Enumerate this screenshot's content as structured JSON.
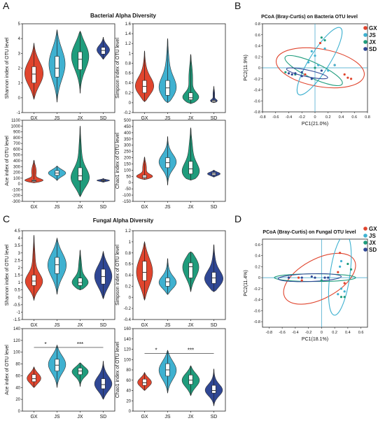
{
  "colors": {
    "GX": "#e0452e",
    "JS": "#3fb1d0",
    "JX": "#1f9c7c",
    "SD": "#2f4795"
  },
  "groups": [
    "GX",
    "JS",
    "JX",
    "SD"
  ],
  "panel_labels": [
    "A",
    "B",
    "C",
    "D"
  ],
  "section_titles": [
    "Bacterial Alpha Diversity",
    "Fungal Alpha Diversity"
  ],
  "chart_data": [
    {
      "id": "bac-shannon",
      "type": "violin",
      "categories": [
        "GX",
        "JS",
        "JX",
        "SD"
      ],
      "ylabel": "Shannon index of OTU level",
      "ylim": [
        -1,
        5
      ],
      "yticks": [
        -1,
        0,
        1,
        2,
        3,
        4,
        5
      ],
      "series": [
        {
          "name": "GX",
          "min": -0.1,
          "q1": 1.0,
          "median": 1.6,
          "q3": 2.1,
          "max": 3.7,
          "mode": 1.6,
          "width": 0.8
        },
        {
          "name": "JS",
          "min": -0.3,
          "q1": 1.4,
          "median": 2.0,
          "q3": 2.8,
          "max": 4.6,
          "mode": 2.3,
          "width": 0.7
        },
        {
          "name": "JX",
          "min": 0.3,
          "q1": 1.9,
          "median": 2.6,
          "q3": 3.1,
          "max": 4.5,
          "mode": 2.9,
          "width": 0.75
        },
        {
          "name": "SD",
          "min": 2.6,
          "q1": 2.95,
          "median": 3.2,
          "q3": 3.4,
          "max": 4.1,
          "mode": 3.2,
          "width": 0.55
        }
      ],
      "annotations": []
    },
    {
      "id": "bac-simpson",
      "type": "violin",
      "categories": [
        "GX",
        "JS",
        "JX",
        "SD"
      ],
      "ylabel": "Simpson index of OTU level",
      "ylim": [
        -0.2,
        1.6
      ],
      "yticks": [
        -0.2,
        0.0,
        0.2,
        0.4,
        0.6,
        0.8,
        1.0,
        1.2,
        1.4,
        1.6
      ],
      "series": [
        {
          "name": "GX",
          "min": 0.02,
          "q1": 0.2,
          "median": 0.33,
          "q3": 0.45,
          "max": 1.05,
          "mode": 0.3,
          "width": 0.8
        },
        {
          "name": "JS",
          "min": 0.0,
          "q1": 0.15,
          "median": 0.3,
          "q3": 0.45,
          "max": 1.3,
          "mode": 0.25,
          "width": 0.75
        },
        {
          "name": "JX",
          "min": -0.02,
          "q1": 0.06,
          "median": 0.1,
          "q3": 0.2,
          "max": 0.98,
          "mode": 0.08,
          "width": 0.7
        },
        {
          "name": "SD",
          "min": 0.0,
          "q1": 0.01,
          "median": 0.03,
          "q3": 0.05,
          "max": 0.33,
          "mode": 0.03,
          "width": 0.3
        }
      ],
      "annotations": []
    },
    {
      "id": "bac-ace",
      "type": "violin",
      "categories": [
        "GX",
        "JS",
        "JX",
        "SD"
      ],
      "ylabel": "Ace index of OTU level",
      "ylim": [
        -300,
        1100
      ],
      "yticks": [
        -300,
        -200,
        -100,
        0,
        100,
        200,
        300,
        400,
        500,
        600,
        700,
        800,
        900,
        1000,
        1100
      ],
      "series": [
        {
          "name": "GX",
          "min": 20,
          "q1": 40,
          "median": 55,
          "q3": 70,
          "max": 410,
          "mode": 55,
          "width": 0.8
        },
        {
          "name": "JS",
          "min": 60,
          "q1": 150,
          "median": 190,
          "q3": 230,
          "max": 310,
          "mode": 190,
          "width": 0.75
        },
        {
          "name": "JX",
          "min": -220,
          "q1": 60,
          "median": 140,
          "q3": 280,
          "max": 1000,
          "mode": 80,
          "width": 0.8
        },
        {
          "name": "SD",
          "min": 30,
          "q1": 50,
          "median": 60,
          "q3": 70,
          "max": 95,
          "mode": 60,
          "width": 0.55
        }
      ],
      "annotations": []
    },
    {
      "id": "bac-chao1",
      "type": "violin",
      "categories": [
        "GX",
        "JS",
        "JX",
        "SD"
      ],
      "ylabel": "Chao1 index of OTU level",
      "ylim": [
        -150,
        500
      ],
      "yticks": [
        -150,
        -100,
        -50,
        0,
        50,
        100,
        150,
        200,
        250,
        300,
        350,
        400,
        450,
        500
      ],
      "series": [
        {
          "name": "GX",
          "min": 25,
          "q1": 35,
          "median": 45,
          "q3": 60,
          "max": 205,
          "mode": 45,
          "width": 0.7
        },
        {
          "name": "JS",
          "min": -20,
          "q1": 120,
          "median": 160,
          "q3": 200,
          "max": 370,
          "mode": 165,
          "width": 0.75
        },
        {
          "name": "JX",
          "min": 20,
          "q1": 70,
          "median": 110,
          "q3": 170,
          "max": 440,
          "mode": 60,
          "width": 0.75
        },
        {
          "name": "SD",
          "min": 45,
          "q1": 60,
          "median": 70,
          "q3": 80,
          "max": 100,
          "mode": 70,
          "width": 0.55
        }
      ],
      "annotations": []
    },
    {
      "id": "fun-shannon",
      "type": "violin",
      "categories": [
        "GX",
        "JS",
        "JX",
        "SD"
      ],
      "ylabel": "Shannon index of OTU level",
      "ylim": [
        -1.5,
        4.5
      ],
      "yticks": [
        -1.5,
        -1,
        -0.5,
        0,
        0.5,
        1,
        1.5,
        2,
        2.5,
        3,
        3.5,
        4,
        4.5
      ],
      "series": [
        {
          "name": "GX",
          "min": -0.2,
          "q1": 0.8,
          "median": 1.1,
          "q3": 1.5,
          "max": 4.2,
          "mode": 1.0,
          "width": 0.75
        },
        {
          "name": "JS",
          "min": 0.2,
          "q1": 1.6,
          "median": 2.2,
          "q3": 2.7,
          "max": 4.0,
          "mode": 2.2,
          "width": 0.8
        },
        {
          "name": "JX",
          "min": 0.5,
          "q1": 0.8,
          "median": 1.0,
          "q3": 1.3,
          "max": 3.2,
          "mode": 0.9,
          "width": 0.7
        },
        {
          "name": "SD",
          "min": -0.1,
          "q1": 0.9,
          "median": 1.4,
          "q3": 1.9,
          "max": 3.1,
          "mode": 1.4,
          "width": 0.75
        }
      ],
      "annotations": []
    },
    {
      "id": "fun-simpson",
      "type": "violin",
      "categories": [
        "GX",
        "JS",
        "JX",
        "SD"
      ],
      "ylabel": "Simpson index of OTU level",
      "ylim": [
        -0.4,
        1.2
      ],
      "yticks": [
        -0.4,
        -0.2,
        0.0,
        0.2,
        0.4,
        0.6,
        0.8,
        1.0,
        1.2
      ],
      "series": [
        {
          "name": "GX",
          "min": -0.05,
          "q1": 0.3,
          "median": 0.45,
          "q3": 0.65,
          "max": 1.0,
          "mode": 0.45,
          "width": 0.7
        },
        {
          "name": "JS",
          "min": 0.05,
          "q1": 0.2,
          "median": 0.28,
          "q3": 0.35,
          "max": 0.7,
          "mode": 0.25,
          "width": 0.75
        },
        {
          "name": "JX",
          "min": 0.1,
          "q1": 0.35,
          "median": 0.55,
          "q3": 0.62,
          "max": 0.82,
          "mode": 0.58,
          "width": 0.7
        },
        {
          "name": "SD",
          "min": 0.1,
          "q1": 0.25,
          "median": 0.35,
          "q3": 0.45,
          "max": 0.95,
          "mode": 0.3,
          "width": 0.8
        }
      ],
      "annotations": []
    },
    {
      "id": "fun-ace",
      "type": "violin",
      "categories": [
        "GX",
        "JS",
        "JX",
        "SD"
      ],
      "ylabel": "Ace index of OTU level",
      "ylim": [
        0,
        140
      ],
      "yticks": [
        0,
        20,
        40,
        60,
        80,
        100,
        120,
        140
      ],
      "series": [
        {
          "name": "GX",
          "min": 40,
          "q1": 50,
          "median": 55,
          "q3": 62,
          "max": 75,
          "mode": 55,
          "width": 0.6
        },
        {
          "name": "JS",
          "min": 40,
          "q1": 68,
          "median": 78,
          "q3": 88,
          "max": 112,
          "mode": 80,
          "width": 0.75
        },
        {
          "name": "JX",
          "min": 42,
          "q1": 62,
          "median": 68,
          "q3": 73,
          "max": 82,
          "mode": 68,
          "width": 0.7
        },
        {
          "name": "SD",
          "min": 20,
          "q1": 38,
          "median": 45,
          "q3": 55,
          "max": 85,
          "mode": 45,
          "width": 0.75
        }
      ],
      "annotations": [
        {
          "text": "*",
          "from": 0,
          "to": 1,
          "y": 108
        },
        {
          "text": "***",
          "from": 1,
          "to": 3,
          "y": 108
        }
      ]
    },
    {
      "id": "fun-chao1",
      "type": "violin",
      "categories": [
        "GX",
        "JS",
        "JX",
        "SD"
      ],
      "ylabel": "Chao1 index of OTU level",
      "ylim": [
        0,
        160
      ],
      "yticks": [
        0,
        20,
        40,
        60,
        80,
        100,
        120,
        140,
        160
      ],
      "series": [
        {
          "name": "GX",
          "min": 40,
          "q1": 50,
          "median": 55,
          "q3": 62,
          "max": 75,
          "mode": 55,
          "width": 0.6
        },
        {
          "name": "JS",
          "min": 35,
          "q1": 68,
          "median": 80,
          "q3": 92,
          "max": 118,
          "mode": 80,
          "width": 0.75
        },
        {
          "name": "JX",
          "min": 30,
          "q1": 52,
          "median": 60,
          "q3": 70,
          "max": 88,
          "mode": 60,
          "width": 0.75
        },
        {
          "name": "SD",
          "min": 10,
          "q1": 35,
          "median": 40,
          "q3": 50,
          "max": 82,
          "mode": 40,
          "width": 0.75
        }
      ],
      "annotations": [
        {
          "text": "*",
          "from": 0,
          "to": 1,
          "y": 112
        },
        {
          "text": "***",
          "from": 1,
          "to": 3,
          "y": 112
        }
      ]
    },
    {
      "id": "bac-pcoa",
      "type": "scatter",
      "title": "PCoA (Bray-Curtis) on Bacteria OTU level",
      "xlabel": "PC1(21.0%)",
      "ylabel": "PC2(11.9%)",
      "xlim": [
        -0.8,
        0.8
      ],
      "ylim": [
        -0.8,
        0.8
      ],
      "xticks": [
        -0.8,
        -0.6,
        -0.4,
        -0.2,
        0.0,
        0.2,
        0.4,
        0.6,
        0.8
      ],
      "yticks": [
        -0.8,
        -0.6,
        -0.4,
        -0.2,
        0.0,
        0.2,
        0.4,
        0.6,
        0.8
      ],
      "legend": "top-right",
      "ellipses": [
        {
          "group": "GX",
          "cx": 0.08,
          "cy": 0.0,
          "rx": 0.68,
          "ry": 0.34,
          "angle": -10
        },
        {
          "group": "JS",
          "cx": 0.07,
          "cy": 0.12,
          "rx": 0.6,
          "ry": 0.18,
          "angle": 58
        },
        {
          "group": "JX",
          "cx": -0.02,
          "cy": -0.05,
          "rx": 0.48,
          "ry": 0.14,
          "angle": -25
        },
        {
          "group": "SD",
          "cx": -0.12,
          "cy": -0.1,
          "rx": 0.32,
          "ry": 0.06,
          "angle": -12
        }
      ],
      "series": [
        {
          "name": "GX",
          "points": [
            [
              0.08,
              0.45
            ],
            [
              0.45,
              -0.12
            ],
            [
              0.5,
              -0.18
            ],
            [
              0.55,
              -0.2
            ],
            [
              -0.15,
              -0.12
            ],
            [
              0.3,
              0.05
            ]
          ]
        },
        {
          "name": "JS",
          "points": [
            [
              0.0,
              0.22
            ],
            [
              -0.05,
              0.3
            ],
            [
              0.15,
              0.35
            ],
            [
              0.3,
              0.05
            ],
            [
              0.2,
              -0.05
            ],
            [
              -0.1,
              0.1
            ],
            [
              0.05,
              0.05
            ]
          ]
        },
        {
          "name": "JX",
          "points": [
            [
              0.1,
              0.55
            ],
            [
              0.15,
              0.5
            ],
            [
              -0.3,
              -0.12
            ],
            [
              -0.45,
              -0.08
            ],
            [
              0.0,
              0.0
            ]
          ]
        },
        {
          "name": "SD",
          "points": [
            [
              -0.35,
              -0.12
            ],
            [
              -0.4,
              -0.1
            ],
            [
              -0.3,
              -0.1
            ],
            [
              -0.2,
              -0.15
            ],
            [
              -0.05,
              -0.2
            ],
            [
              0.1,
              -0.05
            ],
            [
              -0.2,
              -0.08
            ]
          ]
        }
      ]
    },
    {
      "id": "fun-pcoa",
      "type": "scatter",
      "title": "PCoA (Bray-Curtis) on Fungal OTU level",
      "xlabel": "PC1(18.1%)",
      "ylabel": "PC2(11.4%)",
      "xlim": [
        -0.9,
        0.7
      ],
      "ylim": [
        -0.9,
        0.7
      ],
      "xticks": [
        -0.8,
        -0.6,
        -0.4,
        -0.2,
        0.0,
        0.2,
        0.4,
        0.6
      ],
      "yticks": [
        -0.8,
        -0.6,
        -0.4,
        -0.2,
        0.0,
        0.2,
        0.4,
        0.6
      ],
      "legend": "top-right",
      "ellipses": [
        {
          "group": "GX",
          "cx": -0.03,
          "cy": -0.02,
          "rx": 0.6,
          "ry": 0.36,
          "angle": 28
        },
        {
          "group": "JS",
          "cx": 0.28,
          "cy": 0.05,
          "rx": 0.62,
          "ry": 0.18,
          "angle": 82
        },
        {
          "group": "JX",
          "cx": -0.1,
          "cy": 0.0,
          "rx": 0.62,
          "ry": 0.07,
          "angle": 0
        },
        {
          "group": "SD",
          "cx": -0.18,
          "cy": 0.0,
          "rx": 0.48,
          "ry": 0.07,
          "angle": 2
        }
      ],
      "series": [
        {
          "name": "GX",
          "points": [
            [
              0.28,
              0.45
            ],
            [
              0.25,
              0.1
            ],
            [
              -0.3,
              -0.05
            ],
            [
              -0.35,
              0.0
            ],
            [
              0.35,
              -0.1
            ]
          ]
        },
        {
          "name": "JS",
          "points": [
            [
              0.25,
              -0.3
            ],
            [
              0.3,
              -0.2
            ],
            [
              0.35,
              -0.25
            ],
            [
              0.3,
              0.3
            ],
            [
              0.28,
              0.2
            ]
          ]
        },
        {
          "name": "JX",
          "points": [
            [
              0.35,
              -0.35
            ],
            [
              0.4,
              0.25
            ],
            [
              0.45,
              0.15
            ],
            [
              0.3,
              -0.35
            ],
            [
              0.0,
              -0.05
            ]
          ]
        },
        {
          "name": "SD",
          "points": [
            [
              -0.5,
              0.0
            ],
            [
              -0.3,
              0.0
            ],
            [
              -0.15,
              0.02
            ],
            [
              0.05,
              0.0
            ],
            [
              -0.1,
              0.0
            ],
            [
              0.1,
              0.0
            ]
          ]
        }
      ]
    }
  ]
}
